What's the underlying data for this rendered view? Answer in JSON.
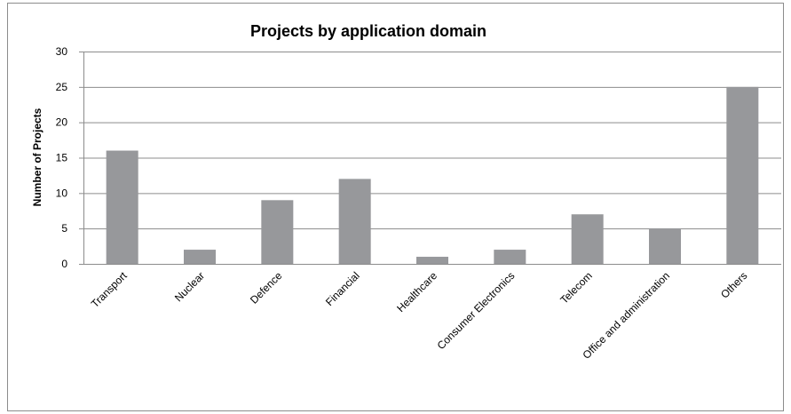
{
  "chart_data": {
    "type": "bar",
    "title": "Projects by application domain",
    "y_label": "Number of Projects",
    "categories": [
      "Transport",
      "Nuclear",
      "Defence",
      "Financial",
      "Healthcare",
      "Consumer Electronics",
      "Telecom",
      "Office and administration",
      "Others"
    ],
    "values": [
      16,
      2,
      9,
      12,
      1,
      2,
      7,
      5,
      25
    ],
    "color": "#97989b",
    "ylim": [
      0,
      30
    ],
    "yticks": [
      0,
      5,
      10,
      15,
      20,
      25,
      30
    ],
    "grid": true
  }
}
